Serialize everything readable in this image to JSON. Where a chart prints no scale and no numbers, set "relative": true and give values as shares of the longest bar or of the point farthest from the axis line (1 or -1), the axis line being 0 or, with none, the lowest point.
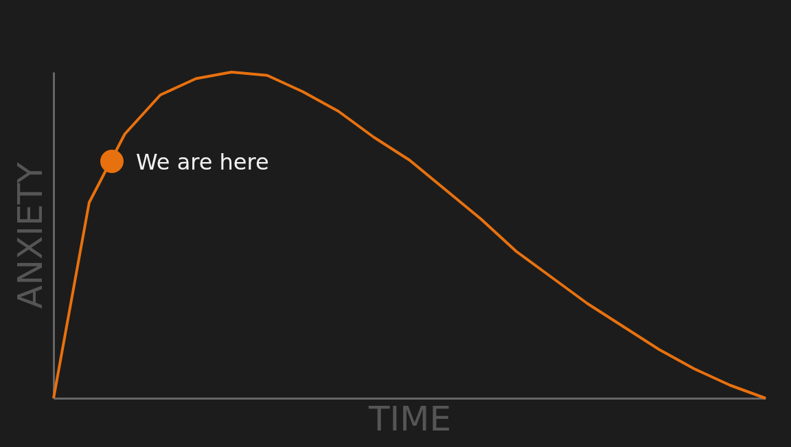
{
  "chart_data": {
    "type": "line",
    "relative": true,
    "xlabel": "TIME",
    "ylabel": "ANXIETY",
    "categories": [
      null,
      null,
      null,
      null,
      null,
      null,
      null,
      null,
      null,
      null,
      null,
      null,
      null,
      null,
      null,
      null,
      null,
      null,
      null,
      null,
      null
    ],
    "series": [
      {
        "color": "#e8710f",
        "values": [
          0,
          0.6,
          0.81,
          0.93,
          0.98,
          1.0,
          0.99,
          0.94,
          0.88,
          0.8,
          0.73,
          0.64,
          0.55,
          0.45,
          0.37,
          0.29,
          0.22,
          0.15,
          0.09,
          0.04,
          0
        ]
      }
    ],
    "annotations": [
      "We are here"
    ]
  }
}
